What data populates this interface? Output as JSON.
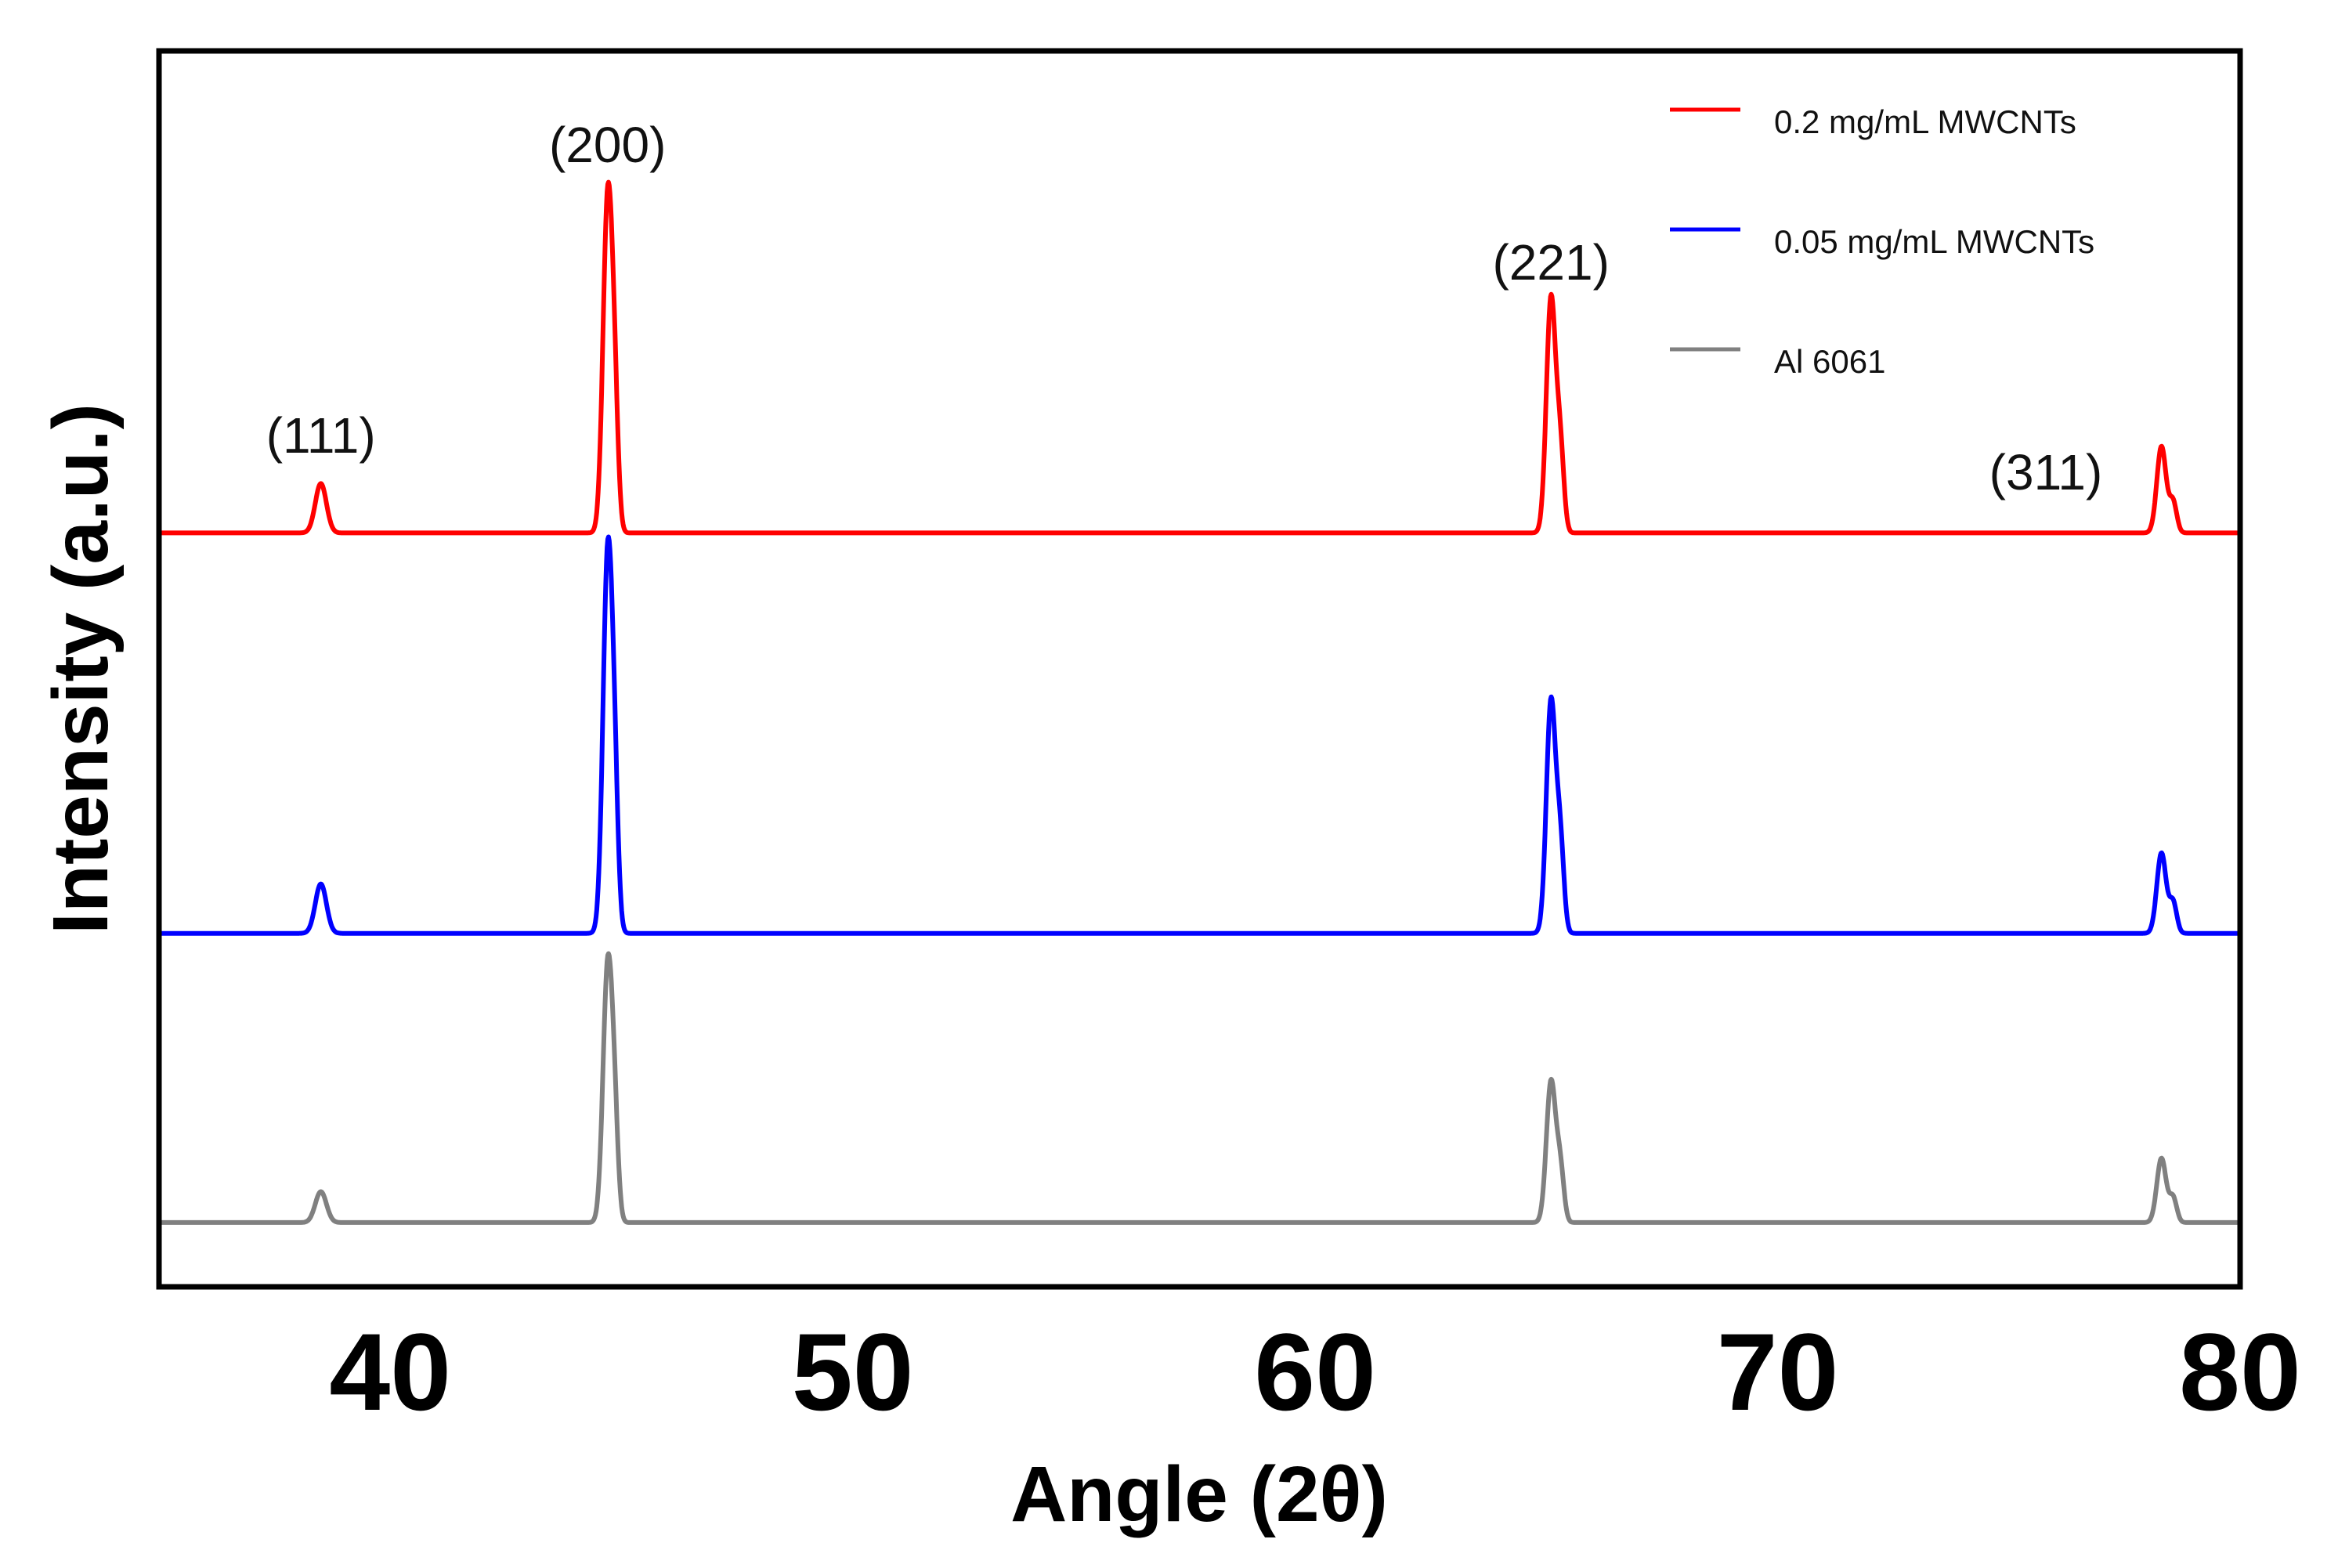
{
  "chart_data": {
    "type": "line",
    "title": "",
    "xlabel": "Angle (2θ)",
    "ylabel": "Intensity (a.u.)",
    "xlim": [
      35,
      80
    ],
    "xticks": [
      40,
      50,
      60,
      70,
      80
    ],
    "ylim": [
      0,
      1
    ],
    "grid": false,
    "legend_position": "top-right",
    "series": [
      {
        "name": "0.2 mg/mL MWCNTs",
        "color": "#ff0000",
        "baseline": 0.61,
        "peaks": [
          {
            "x": 38.5,
            "height": 0.04,
            "width": 0.12
          },
          {
            "x": 44.7,
            "height": 0.265,
            "width": 0.1
          },
          {
            "x": 44.85,
            "height": 0.09,
            "width": 0.08
          },
          {
            "x": 65.1,
            "height": 0.19,
            "width": 0.1
          },
          {
            "x": 65.3,
            "height": 0.065,
            "width": 0.08
          },
          {
            "x": 78.3,
            "height": 0.07,
            "width": 0.1
          },
          {
            "x": 78.55,
            "height": 0.025,
            "width": 0.08
          }
        ]
      },
      {
        "name": "0.05 mg/mL MWCNTs",
        "color": "#0000ff",
        "baseline": 0.286,
        "peaks": [
          {
            "x": 38.5,
            "height": 0.04,
            "width": 0.12
          },
          {
            "x": 44.7,
            "height": 0.3,
            "width": 0.1
          },
          {
            "x": 44.85,
            "height": 0.1,
            "width": 0.08
          },
          {
            "x": 65.1,
            "height": 0.188,
            "width": 0.1
          },
          {
            "x": 65.3,
            "height": 0.07,
            "width": 0.08
          },
          {
            "x": 78.3,
            "height": 0.065,
            "width": 0.1
          },
          {
            "x": 78.55,
            "height": 0.025,
            "width": 0.08
          }
        ]
      },
      {
        "name": "Al 6061",
        "color": "#808080",
        "baseline": 0.052,
        "peaks": [
          {
            "x": 38.5,
            "height": 0.025,
            "width": 0.12
          },
          {
            "x": 44.7,
            "height": 0.203,
            "width": 0.1
          },
          {
            "x": 44.85,
            "height": 0.07,
            "width": 0.08
          },
          {
            "x": 65.1,
            "height": 0.114,
            "width": 0.1
          },
          {
            "x": 65.3,
            "height": 0.042,
            "width": 0.08
          },
          {
            "x": 78.3,
            "height": 0.052,
            "width": 0.1
          },
          {
            "x": 78.55,
            "height": 0.02,
            "width": 0.08
          }
        ]
      }
    ],
    "annotations": [
      {
        "text": "(111)",
        "x": 38.5,
        "y": 0.675
      },
      {
        "text": "(200)",
        "x": 44.7,
        "y": 0.91
      },
      {
        "text": "(221)",
        "x": 65.1,
        "y": 0.815
      },
      {
        "text": "(311)",
        "x": 75.8,
        "y": 0.645
      }
    ]
  }
}
